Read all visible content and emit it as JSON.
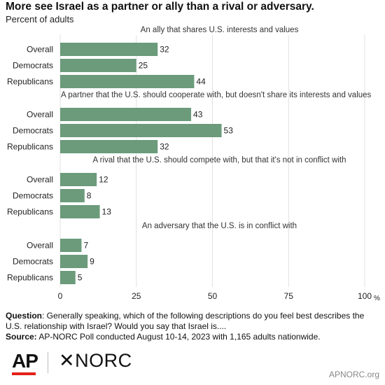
{
  "header": {
    "title": "More see Israel as a partner or ally than a rival or adversary.",
    "subtitle": "Percent of adults"
  },
  "chart_data": {
    "type": "bar",
    "orientation": "horizontal",
    "xlim": [
      0,
      100
    ],
    "x_ticks": [
      "0",
      "25",
      "50",
      "75",
      "100"
    ],
    "x_unit": "%",
    "bar_color": "#6b9b7b",
    "grid": true,
    "groups": [
      {
        "label": "An ally that shares U.S. interests and values",
        "categories": [
          "Overall",
          "Democrats",
          "Republicans"
        ],
        "values": [
          32,
          25,
          44
        ]
      },
      {
        "label": "A partner that the U.S. should cooperate with, but doesn't share its interests and values",
        "categories": [
          "Overall",
          "Democrats",
          "Republicans"
        ],
        "values": [
          43,
          53,
          32
        ]
      },
      {
        "label": "A rival that the U.S. should compete with, but that it's not in conflict with",
        "categories": [
          "Overall",
          "Democrats",
          "Republicans"
        ],
        "values": [
          12,
          8,
          13
        ]
      },
      {
        "label": "An adversary that the U.S. is in conflict with",
        "categories": [
          "Overall",
          "Democrats",
          "Republicans"
        ],
        "values": [
          7,
          9,
          5
        ]
      }
    ]
  },
  "footer": {
    "question_label": "Question",
    "question_text": ": Generally speaking, which of the following descriptions do you feel best describes the U.S. relationship with Israel? Would you say that Israel is....",
    "source_label": "Source:",
    "source_text": " AP-NORC Poll conducted August 10-14, 2023 with 1,165 adults nationwide."
  },
  "logos": {
    "ap": "AP",
    "norc": "NORC",
    "url": "APNORC.org"
  }
}
